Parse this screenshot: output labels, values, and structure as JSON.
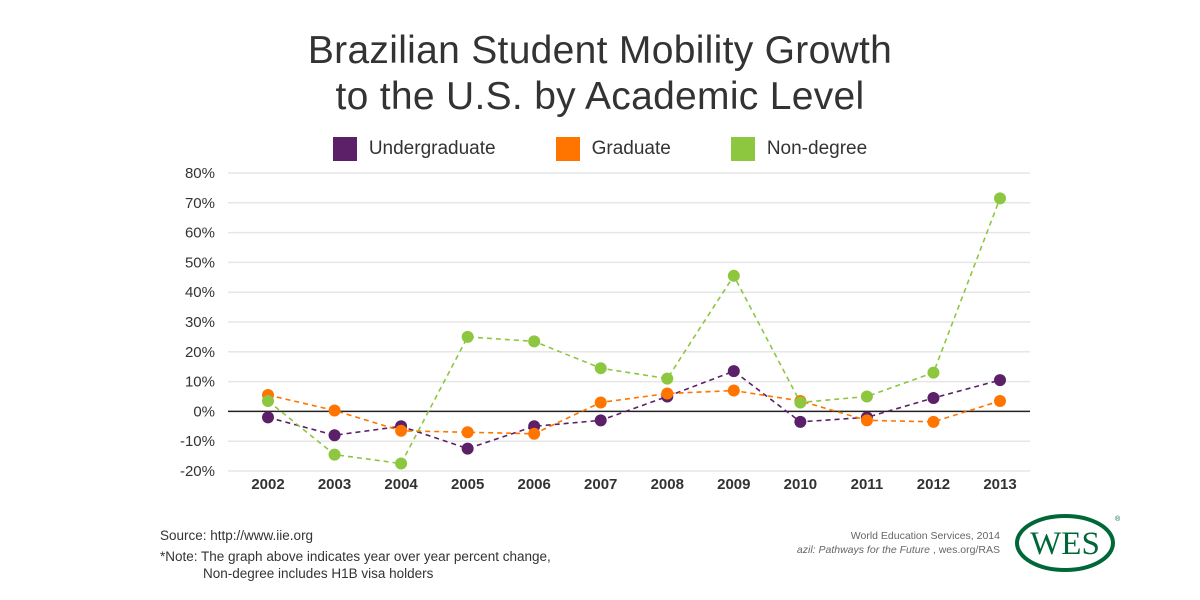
{
  "chart_data": {
    "type": "line",
    "title": "Brazilian Student Mobility Growth to the U.S. by Academic Level",
    "title_lines": [
      "Brazilian Student Mobility Growth",
      "to the U.S. by Academic Level"
    ],
    "xlabel": "",
    "ylabel": "",
    "x": [
      "2002",
      "2003",
      "2004",
      "2005",
      "2006",
      "2007",
      "2008",
      "2009",
      "2010",
      "2011",
      "2012",
      "2013"
    ],
    "ylim": [
      -20,
      80
    ],
    "yticks": [
      -20,
      -10,
      0,
      10,
      20,
      30,
      40,
      50,
      60,
      70,
      80
    ],
    "ytick_labels": [
      "-20%",
      "-10%",
      "0%",
      "10%",
      "20%",
      "30%",
      "40%",
      "50%",
      "60%",
      "70%",
      "80%"
    ],
    "grid": true,
    "legend_position": "top-center",
    "series": [
      {
        "name": "Undergraduate",
        "color": "#5c2068",
        "values": [
          -2,
          -8,
          -5,
          -12.5,
          -5,
          -3,
          5,
          13.5,
          -3.5,
          -2,
          4.5,
          10.5
        ]
      },
      {
        "name": "Graduate",
        "color": "#ff7500",
        "values": [
          5.5,
          0.3,
          -6.5,
          -7,
          -7.5,
          3,
          6,
          7,
          3.5,
          -3,
          -3.5,
          3.5
        ]
      },
      {
        "name": "Non-degree",
        "color": "#8dc63f",
        "values": [
          3.5,
          -14.5,
          -17.5,
          25,
          23.5,
          14.5,
          11,
          45.5,
          3,
          5,
          13,
          71.5
        ]
      }
    ]
  },
  "footer": {
    "source": "Source: http://www.iie.org",
    "note_line1": "*Note: The graph above indicates year over year percent change,",
    "note_line2": "Non-degree includes H1B visa holders",
    "credit_line1": "World Education Services, 2014",
    "credit_line2_italic": "azil: Pathways for the Future",
    "credit_line2_rest": " , wes.org/RAS",
    "logo_text": "WES",
    "logo_color": "#006838"
  }
}
